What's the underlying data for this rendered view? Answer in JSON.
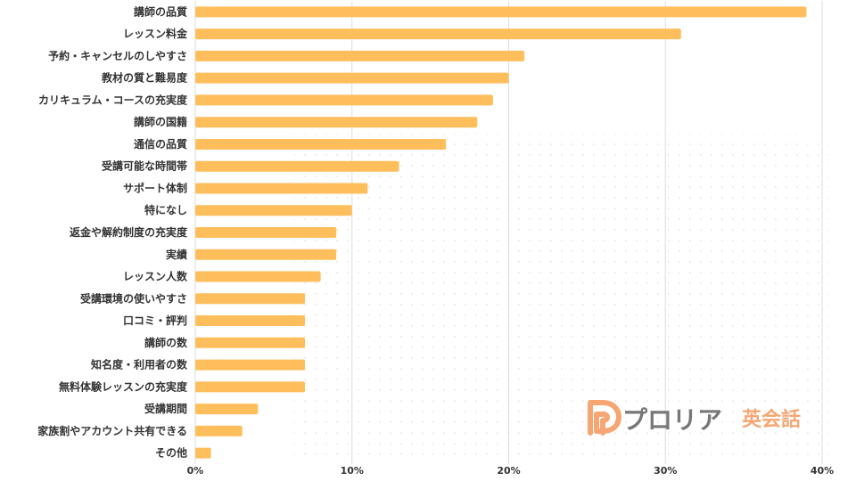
{
  "chart_data": {
    "type": "bar",
    "orientation": "horizontal",
    "categories": [
      "講師の品質",
      "レッスン料金",
      "予約・キャンセルのしやすさ",
      "教材の質と難易度",
      "カリキュラム・コースの充実度",
      "講師の国籍",
      "通信の品質",
      "受講可能な時間帯",
      "サポート体制",
      "特になし",
      "返金や解約制度の充実度",
      "実績",
      "レッスン人数",
      "受講環境の使いやすさ",
      "口コミ・評判",
      "講師の数",
      "知名度・利用者の数",
      "無料体験レッスンの充実度",
      "受講期間",
      "家族割やアカウント共有できる",
      "その他"
    ],
    "values": [
      39,
      31,
      21,
      20,
      19,
      18,
      16,
      13,
      11,
      10,
      9,
      9,
      8,
      7,
      7,
      7,
      7,
      7,
      4,
      3,
      1
    ],
    "xlim": [
      0,
      40
    ],
    "xticks": [
      "0%",
      "10%",
      "20%",
      "30%",
      "40%"
    ],
    "grid": true,
    "bar_color": "#ffbe5c",
    "grid_color": "#dddddd"
  },
  "logo": {
    "mark": "P",
    "name": "プロリア",
    "sub": "英会話",
    "accent_color": "#f5a672",
    "text_color": "#777777"
  }
}
